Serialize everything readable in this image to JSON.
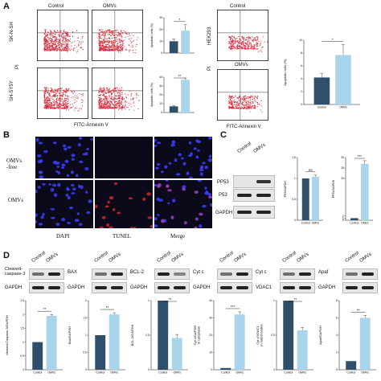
{
  "panelA": {
    "letter": "A",
    "cols": [
      "Control",
      "OMVs"
    ],
    "rows": [
      "SK-N-SH",
      "SH-SY5Y"
    ],
    "yaxis": "PI",
    "xaxis": "FITC-Annexin V",
    "hek_row": "HEK293",
    "hek_cols": [
      "Control",
      "OMVs"
    ]
  },
  "panelB": {
    "letter": "B",
    "rows": [
      "OMVs\n-free",
      "OMVs"
    ],
    "cols": [
      "DAPI",
      "TUNEL",
      "Merge"
    ],
    "col_colors": [
      "#2222cc",
      "#cc2222",
      "#8833aa"
    ]
  },
  "panelC": {
    "letter": "C",
    "cols": [
      "Control",
      "OMVs"
    ],
    "blots": [
      "PP53",
      "P53",
      "GAPDH"
    ]
  },
  "panelD": {
    "letter": "D",
    "cols": [
      "Control",
      "OMVs"
    ],
    "blot_labels": [
      "Cleaved-\ncaspase-3",
      "BAX",
      "BCL-2",
      "Cyt c",
      "Cyt c",
      "Apaf"
    ],
    "ref_labels": [
      "GAPDH",
      "GAPDH",
      "GAPDH",
      "GAPDH",
      "VDAC1",
      "GAPDH"
    ]
  },
  "colors": {
    "dark": "#2f4f6b",
    "light": "#a8d4ec"
  },
  "chart_data": [
    {
      "type": "bar",
      "categories": [
        "",
        ""
      ],
      "values": [
        10,
        19
      ],
      "errors": [
        2,
        5
      ],
      "ylim": [
        0,
        30
      ],
      "yticks": [
        0,
        10,
        20,
        30
      ],
      "ylabel": "Apoptotic cells (%)",
      "sig": "*"
    },
    {
      "type": "bar",
      "categories": [
        "",
        ""
      ],
      "values": [
        7,
        37
      ],
      "errors": [
        1,
        2
      ],
      "ylim": [
        0,
        40
      ],
      "yticks": [
        0,
        10,
        20,
        30,
        40
      ],
      "ylabel": "Apoptotic cells (%)",
      "sig": "**"
    },
    {
      "type": "bar",
      "categories": [
        "Control",
        "OMVs"
      ],
      "values": [
        4.2,
        7.7
      ],
      "errors": [
        0.6,
        1.6
      ],
      "ylim": [
        0,
        10
      ],
      "yticks": [
        0,
        2,
        4,
        6,
        8,
        10
      ],
      "ylabel": "Apoptotic cells (%)",
      "sig": "*"
    },
    {
      "type": "bar",
      "categories": [
        "Control",
        "OMVs"
      ],
      "values": [
        1.0,
        1.04
      ],
      "errors": [
        0,
        0.04
      ],
      "ylim": [
        0,
        1.5
      ],
      "yticks": [
        0,
        0.5,
        1.0,
        1.5
      ],
      "ylabel": "P53/GAPDH",
      "sig": "ns"
    },
    {
      "type": "bar",
      "categories": [
        "Control",
        "OMVs"
      ],
      "values": [
        1.0,
        27
      ],
      "errors": [
        0,
        1.5
      ],
      "ylim": [
        0,
        30
      ],
      "yticks": [
        0,
        1,
        2,
        20,
        25,
        30
      ],
      "ylabel": "PP53/GAPDH",
      "sig": "***"
    },
    {
      "type": "bar",
      "categories": [
        "Control",
        "OMVs"
      ],
      "values": [
        1.0,
        1.95
      ],
      "errors": [
        0,
        0.05
      ],
      "ylim": [
        0,
        2.5
      ],
      "yticks": [
        0,
        0.5,
        1.0,
        1.5,
        2.0,
        2.5
      ],
      "ylabel": "cleaved-Caspase-3/GAPDH",
      "sig": "**"
    },
    {
      "type": "bar",
      "categories": [
        "Control",
        "OMVs"
      ],
      "values": [
        1.0,
        1.6
      ],
      "errors": [
        0,
        0.05
      ],
      "ylim": [
        0,
        2.0
      ],
      "yticks": [
        0,
        0.5,
        1.0,
        1.5,
        2.0
      ],
      "ylabel": "Bax/GAPDH",
      "sig": "**"
    },
    {
      "type": "bar",
      "categories": [
        "Control",
        "OMVs"
      ],
      "values": [
        1.0,
        0.46
      ],
      "errors": [
        0,
        0.05
      ],
      "ylim": [
        0,
        1.0
      ],
      "yticks": [
        0,
        0.5,
        1.0
      ],
      "ylabel": "BCL-2/GAPDH",
      "sig": "**"
    },
    {
      "type": "bar",
      "categories": [
        "Control",
        "OMVs"
      ],
      "values": [
        1.0,
        32
      ],
      "errors": [
        0,
        1.5
      ],
      "ylim": [
        0,
        40
      ],
      "yticks": [
        0,
        10,
        20,
        30,
        40
      ],
      "ylabel": "Cyt c/GAPDH\nin cytoplasm",
      "sig": "***"
    },
    {
      "type": "bar",
      "categories": [
        "Control",
        "OMVs"
      ],
      "values": [
        1.0,
        0.57
      ],
      "errors": [
        0,
        0.04
      ],
      "ylim": [
        0,
        1.0
      ],
      "yticks": [
        0,
        0.5,
        1.0
      ],
      "ylabel": "Cyt c/VDAC1\nin mitochondria",
      "sig": "**"
    },
    {
      "type": "bar",
      "categories": [
        "Control",
        "OMVs"
      ],
      "values": [
        1.0,
        6.0
      ],
      "errors": [
        0,
        0.3
      ],
      "ylim": [
        0,
        8
      ],
      "yticks": [
        0,
        2,
        4,
        6,
        8
      ],
      "ylabel": "Apaf/GAPDH",
      "sig": "**"
    }
  ]
}
